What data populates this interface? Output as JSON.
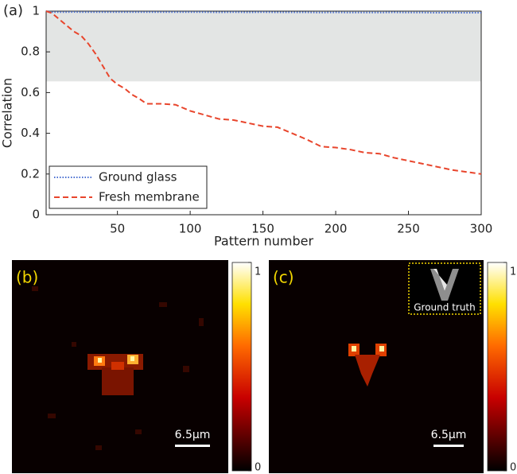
{
  "chart_data": {
    "type": "line",
    "panel_label": "(a)",
    "x_label": "Pattern number",
    "y_label": "Correlation",
    "xlim": [
      1,
      300
    ],
    "ylim": [
      0,
      1
    ],
    "xticks": [
      50,
      100,
      150,
      200,
      250,
      300
    ],
    "yticks": [
      0,
      0.2,
      0.4,
      0.6,
      0.8,
      1
    ],
    "shaded_region": [
      0.655,
      1
    ],
    "shaded_color": "#e3e5e4",
    "legend": "lower-left",
    "x": [
      1,
      5,
      10,
      15,
      20,
      25,
      30,
      35,
      40,
      45,
      50,
      55,
      60,
      65,
      70,
      75,
      80,
      90,
      100,
      110,
      120,
      130,
      140,
      150,
      160,
      170,
      180,
      190,
      200,
      210,
      220,
      230,
      240,
      250,
      260,
      270,
      280,
      290,
      300
    ],
    "series": [
      {
        "name": "Ground glass",
        "color": "#4a6fd0",
        "dash": "dotted",
        "values": [
          1,
          0.995,
          0.995,
          0.995,
          0.996,
          0.995,
          0.995,
          0.995,
          0.995,
          0.995,
          0.995,
          0.995,
          0.995,
          0.995,
          0.995,
          0.995,
          0.995,
          0.995,
          0.995,
          0.995,
          0.994,
          0.995,
          0.994,
          0.995,
          0.994,
          0.994,
          0.994,
          0.993,
          0.994,
          0.993,
          0.993,
          0.993,
          0.994,
          0.993,
          0.993,
          0.992,
          0.993,
          0.992,
          0.992
        ]
      },
      {
        "name": "Fresh membrane",
        "color": "#e8452c",
        "dash": "dashed",
        "values": [
          1,
          0.99,
          0.96,
          0.93,
          0.9,
          0.88,
          0.84,
          0.79,
          0.73,
          0.67,
          0.64,
          0.62,
          0.59,
          0.57,
          0.545,
          0.545,
          0.545,
          0.54,
          0.51,
          0.49,
          0.47,
          0.465,
          0.45,
          0.435,
          0.43,
          0.4,
          0.37,
          0.335,
          0.33,
          0.32,
          0.305,
          0.3,
          0.28,
          0.265,
          0.25,
          0.235,
          0.22,
          0.21,
          0.2
        ]
      }
    ]
  },
  "panels": [
    {
      "label": "(b)",
      "clim": [
        0,
        1
      ],
      "colorbar_ticks": [
        0,
        1
      ],
      "scalebar": "6.5μm"
    },
    {
      "label": "(c)",
      "clim": [
        0,
        1
      ],
      "colorbar_ticks": [
        0,
        1
      ],
      "scalebar": "6.5μm",
      "inset_label": "Ground truth"
    }
  ]
}
